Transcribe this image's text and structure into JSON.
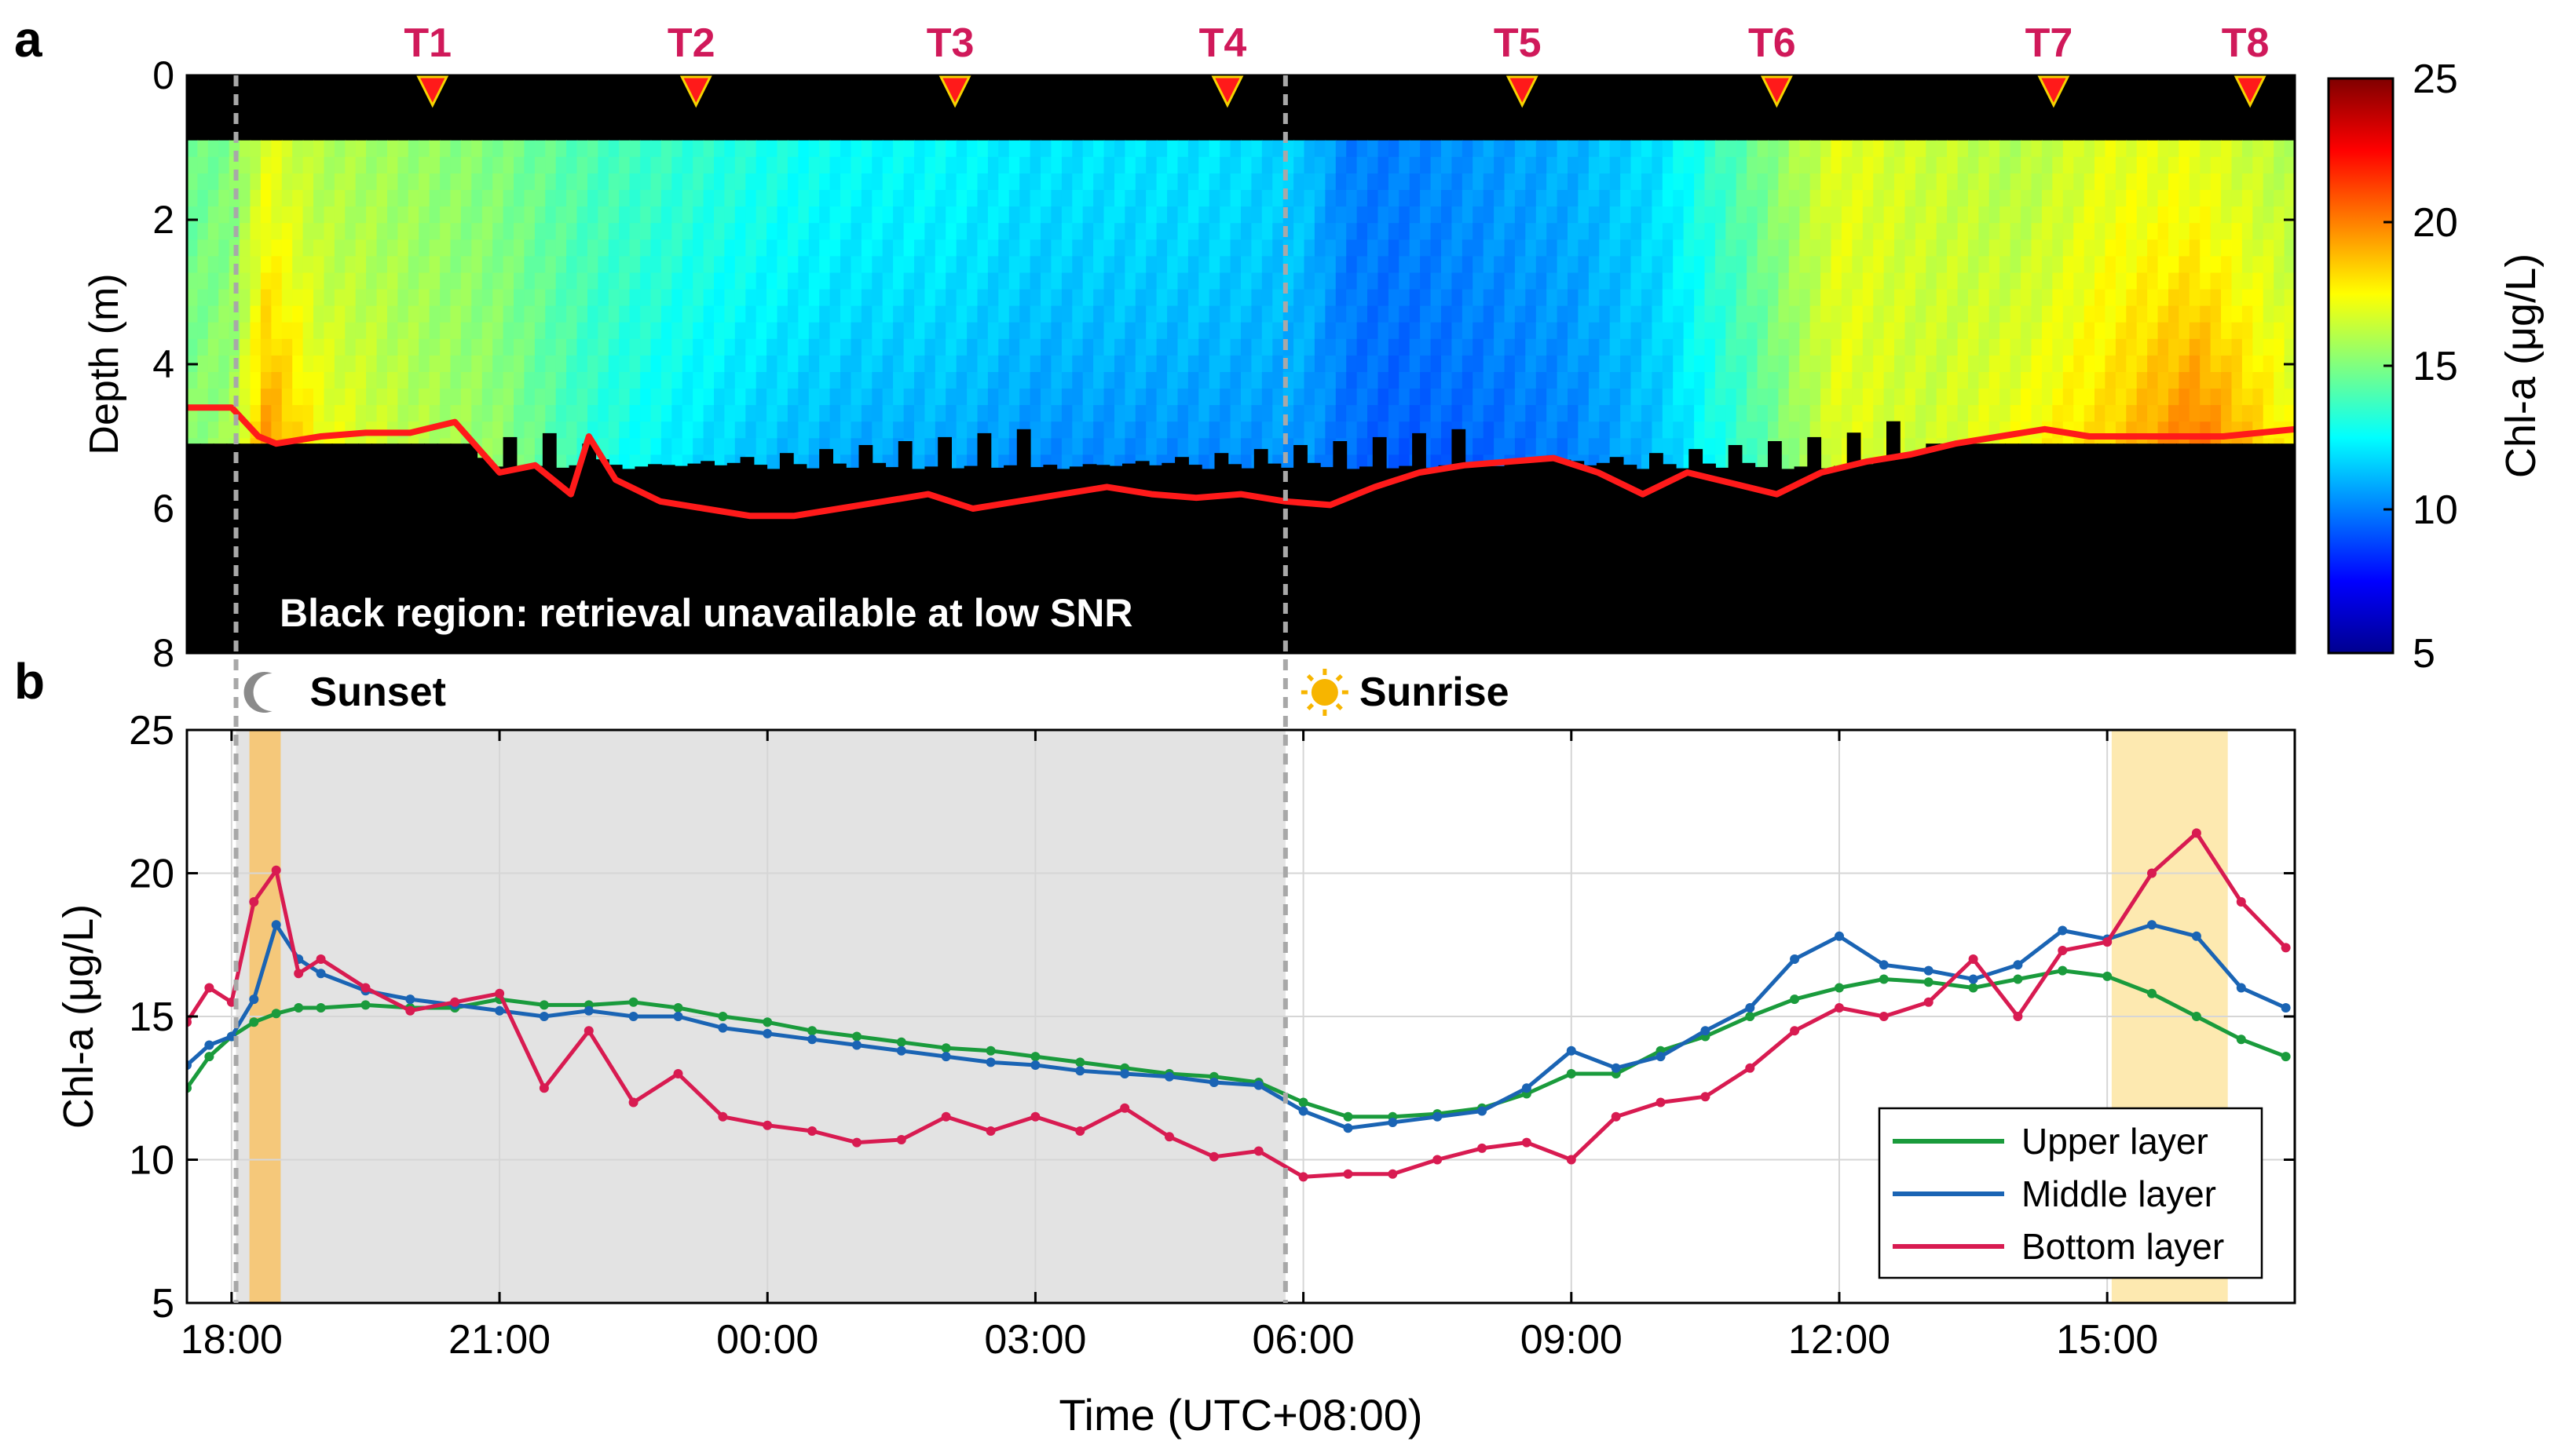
{
  "panel_labels": {
    "a": "a",
    "b": "b"
  },
  "chart_data": [
    {
      "type": "heatmap",
      "panel": "a",
      "ylabel": "Depth (m)",
      "ylim": [
        8,
        0
      ],
      "yticks": [
        0,
        2,
        4,
        6,
        8
      ],
      "colorbar": {
        "label": "Chl-a (μg/L)",
        "range": [
          5,
          25
        ],
        "ticks": [
          5,
          10,
          15,
          20,
          25
        ],
        "colormap": "jet"
      },
      "annotation": "Black region: retrieval unavailable at low SNR",
      "transects": [
        {
          "label": "T1",
          "time_h": 20.25
        },
        {
          "label": "T2",
          "time_h": 23.2
        },
        {
          "label": "T3",
          "time_h": 26.1
        },
        {
          "label": "T4",
          "time_h": 29.15
        },
        {
          "label": "T5",
          "time_h": 32.45
        },
        {
          "label": "T6",
          "time_h": 35.3
        },
        {
          "label": "T7",
          "time_h": 38.4
        },
        {
          "label": "T8",
          "time_h": 40.6
        }
      ],
      "time_range_h": [
        17.5,
        41.1
      ],
      "surface_blank_depth": 0.9,
      "bottom_line_time_h": [
        17.5,
        18.0,
        18.3,
        18.5,
        19.0,
        19.5,
        20.0,
        20.5,
        21.0,
        21.4,
        21.8,
        22.0,
        22.3,
        22.8,
        23.3,
        23.8,
        24.3,
        24.8,
        25.3,
        25.8,
        26.3,
        26.8,
        27.3,
        27.8,
        28.3,
        28.8,
        29.3,
        29.8,
        30.3,
        30.8,
        31.3,
        31.8,
        32.3,
        32.8,
        33.3,
        33.8,
        34.3,
        34.8,
        35.3,
        35.8,
        36.3,
        36.8,
        37.3,
        37.8,
        38.3,
        38.8,
        39.3,
        39.8,
        40.3,
        41.1
      ],
      "bottom_line_depth_m": [
        4.6,
        4.6,
        5.0,
        5.1,
        5.0,
        4.95,
        4.95,
        4.8,
        5.5,
        5.4,
        5.8,
        5.0,
        5.6,
        5.9,
        6.0,
        6.1,
        6.1,
        6.0,
        5.9,
        5.8,
        6.0,
        5.9,
        5.8,
        5.7,
        5.8,
        5.85,
        5.8,
        5.9,
        5.95,
        5.7,
        5.5,
        5.4,
        5.35,
        5.3,
        5.5,
        5.8,
        5.5,
        5.65,
        5.8,
        5.5,
        5.35,
        5.25,
        5.1,
        5.0,
        4.9,
        5.0,
        5.0,
        5.0,
        5.0,
        4.9
      ],
      "concentration_profile_time_h": [
        17.5,
        18.0,
        18.4,
        19.0,
        20.0,
        21.0,
        22.0,
        23.0,
        24.0,
        25.0,
        26.0,
        27.0,
        28.0,
        29.0,
        30.0,
        30.5,
        31.0,
        32.0,
        33.0,
        34.0,
        35.0,
        36.0,
        37.0,
        38.0,
        39.0,
        40.0,
        41.1
      ],
      "concentration_profile_upper_ugL": [
        14.5,
        15,
        17,
        16,
        15.5,
        15,
        14,
        13.5,
        13,
        12.5,
        12.5,
        12,
        12,
        12,
        11.5,
        10,
        10,
        10.5,
        11,
        12,
        14.5,
        17,
        16.5,
        16,
        17,
        17,
        16
      ],
      "concentration_profile_lower_ugL": [
        15.5,
        16,
        21,
        18,
        16.5,
        15.5,
        13,
        11.5,
        10.5,
        10,
        10,
        9.5,
        9.5,
        9.5,
        10,
        9.5,
        9,
        9,
        9.5,
        11,
        13.5,
        17,
        16.5,
        18,
        19,
        22,
        18
      ]
    },
    {
      "type": "line",
      "panel": "b",
      "xlabel": "Time (UTC+08:00)",
      "ylabel": "Chl-a (μg/L)",
      "ylim": [
        5,
        25
      ],
      "yticks": [
        5,
        10,
        15,
        20,
        25
      ],
      "xlim_h": [
        17.5,
        41.1
      ],
      "xticks_h": [
        18,
        21,
        24,
        27,
        30,
        33,
        36,
        39
      ],
      "xtick_labels": [
        "18:00",
        "21:00",
        "00:00",
        "03:00",
        "06:00",
        "09:00",
        "12:00",
        "15:00"
      ],
      "grid": true,
      "night_period_h": [
        18.05,
        29.8
      ],
      "highlight_periods_h": [
        [
          18.2,
          18.55
        ],
        [
          39.05,
          40.35
        ]
      ],
      "events": [
        {
          "label": "Sunset",
          "time_h": 18.05,
          "icon": "moon"
        },
        {
          "label": "Sunrise",
          "time_h": 29.8,
          "icon": "sun"
        }
      ],
      "legend_position": "bottom-right",
      "x": [
        17.5,
        17.75,
        18.0,
        18.25,
        18.5,
        18.75,
        19.0,
        19.5,
        20.0,
        20.5,
        21.0,
        21.5,
        22.0,
        22.5,
        23.0,
        23.5,
        24.0,
        24.5,
        25.0,
        25.5,
        26.0,
        26.5,
        27.0,
        27.5,
        28.0,
        28.5,
        29.0,
        29.5,
        30.0,
        30.5,
        31.0,
        31.5,
        32.0,
        32.5,
        33.0,
        33.5,
        34.0,
        34.5,
        35.0,
        35.5,
        36.0,
        36.5,
        37.0,
        37.5,
        38.0,
        38.5,
        39.0,
        39.5,
        40.0,
        40.5,
        41.0
      ],
      "series": [
        {
          "name": "Upper layer",
          "color": "#1a9b3c",
          "values": [
            12.5,
            13.6,
            14.3,
            14.8,
            15.1,
            15.3,
            15.3,
            15.4,
            15.3,
            15.3,
            15.6,
            15.4,
            15.4,
            15.5,
            15.3,
            15.0,
            14.8,
            14.5,
            14.3,
            14.1,
            13.9,
            13.8,
            13.6,
            13.4,
            13.2,
            13.0,
            12.9,
            12.7,
            12.0,
            11.5,
            11.5,
            11.6,
            11.8,
            12.3,
            13.0,
            13.0,
            13.8,
            14.3,
            15.0,
            15.6,
            16.0,
            16.3,
            16.2,
            16.0,
            16.3,
            16.6,
            16.4,
            15.8,
            15.0,
            14.2,
            13.6
          ]
        },
        {
          "name": "Middle layer",
          "color": "#1a64b4",
          "values": [
            13.3,
            14.0,
            14.3,
            15.6,
            18.2,
            17.0,
            16.5,
            15.9,
            15.6,
            15.4,
            15.2,
            15.0,
            15.2,
            15.0,
            15.0,
            14.6,
            14.4,
            14.2,
            14.0,
            13.8,
            13.6,
            13.4,
            13.3,
            13.1,
            13.0,
            12.9,
            12.7,
            12.6,
            11.7,
            11.1,
            11.3,
            11.5,
            11.7,
            12.5,
            13.8,
            13.2,
            13.6,
            14.5,
            15.3,
            17.0,
            17.8,
            16.8,
            16.6,
            16.3,
            16.8,
            18.0,
            17.7,
            18.2,
            17.8,
            16.0,
            15.3
          ]
        },
        {
          "name": "Bottom layer",
          "color": "#d81b51",
          "values": [
            14.8,
            16.0,
            15.5,
            19.0,
            20.1,
            16.5,
            17.0,
            16.0,
            15.2,
            15.5,
            15.8,
            12.5,
            14.5,
            12.0,
            13.0,
            11.5,
            11.2,
            11.0,
            10.6,
            10.7,
            11.5,
            11.0,
            11.5,
            11.0,
            11.8,
            10.8,
            10.1,
            10.3,
            9.4,
            9.5,
            9.5,
            10.0,
            10.4,
            10.6,
            10.0,
            11.5,
            12.0,
            12.2,
            13.2,
            14.5,
            15.3,
            15.0,
            15.5,
            17.0,
            15.0,
            17.3,
            17.6,
            20.0,
            21.4,
            19.0,
            17.4
          ]
        }
      ]
    }
  ]
}
